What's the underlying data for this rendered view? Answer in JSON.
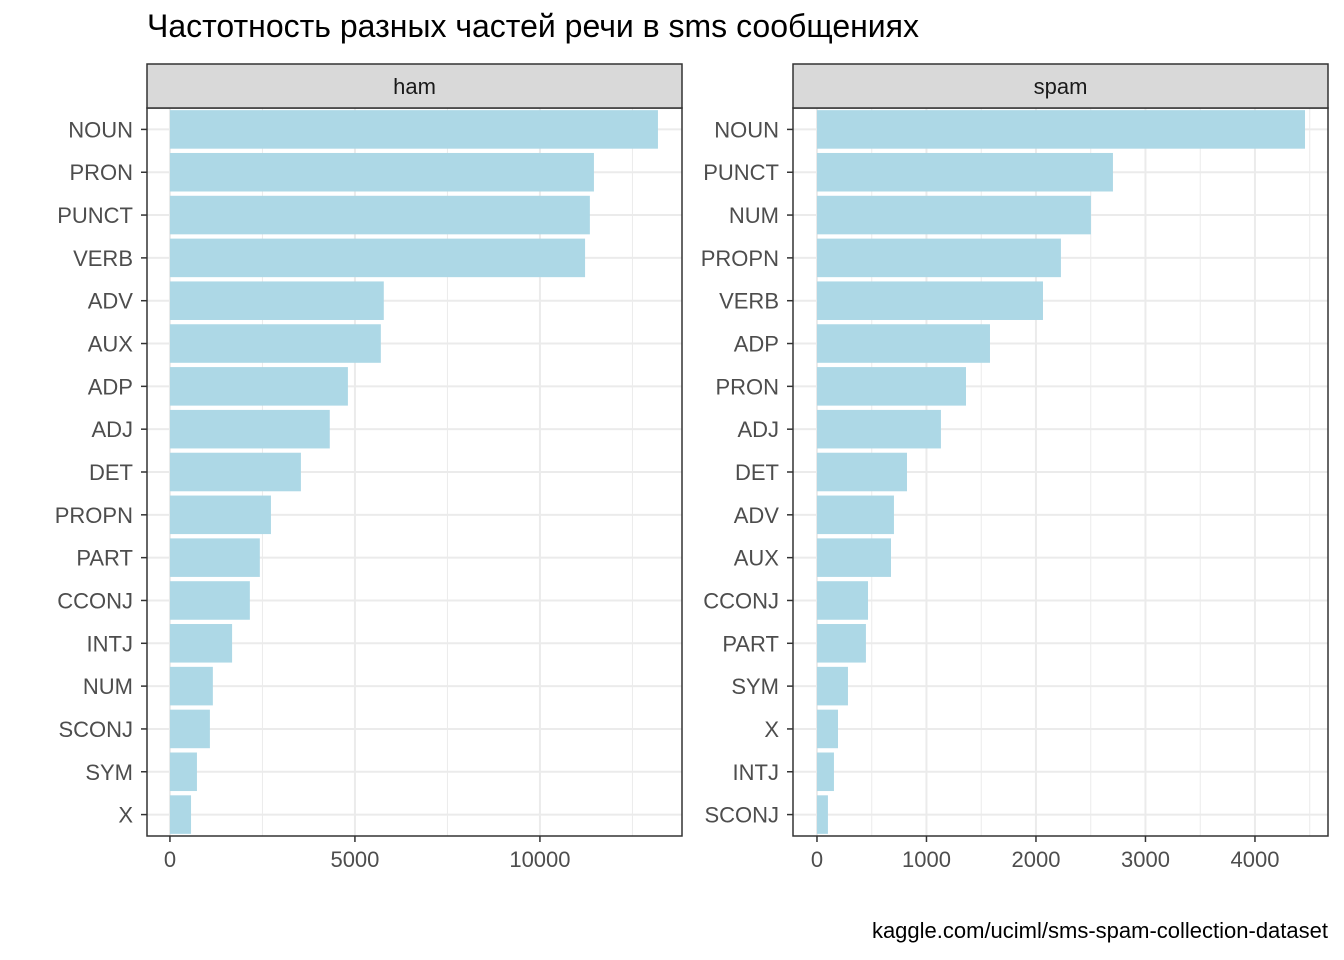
{
  "chart_data": {
    "type": "bar",
    "orientation": "horizontal",
    "title": "Частотность разных частей речи в sms сообщениях",
    "caption": "kaggle.com/uciml/sms-spam-collection-dataset",
    "bar_color": "#ADD8E6",
    "panels": [
      {
        "name": "ham",
        "categories": [
          "NOUN",
          "PRON",
          "PUNCT",
          "VERB",
          "ADV",
          "AUX",
          "ADP",
          "ADJ",
          "DET",
          "PROPN",
          "PART",
          "CCONJ",
          "INTJ",
          "NUM",
          "SCONJ",
          "SYM",
          "X"
        ],
        "values": [
          13190,
          11460,
          11350,
          11220,
          5780,
          5700,
          4810,
          4320,
          3540,
          2730,
          2430,
          2160,
          1680,
          1160,
          1080,
          730,
          570
        ],
        "xlim": [
          -620,
          13840
        ],
        "xticks": [
          0,
          5000,
          10000
        ],
        "xtick_labels": [
          "0",
          "5000",
          "10000"
        ]
      },
      {
        "name": "spam",
        "categories": [
          "NOUN",
          "PUNCT",
          "NUM",
          "PROPN",
          "VERB",
          "ADP",
          "PRON",
          "ADJ",
          "DET",
          "ADV",
          "AUX",
          "CCONJ",
          "PART",
          "SYM",
          "X",
          "INTJ",
          "SCONJ"
        ],
        "values": [
          4457,
          2703,
          2502,
          2228,
          2064,
          1580,
          1361,
          1132,
          822,
          703,
          676,
          466,
          447,
          283,
          192,
          155,
          100
        ],
        "xlim": [
          -219,
          4667
        ],
        "xticks": [
          0,
          1000,
          2000,
          3000,
          4000
        ],
        "xtick_labels": [
          "0",
          "1000",
          "2000",
          "3000",
          "4000"
        ]
      }
    ]
  }
}
